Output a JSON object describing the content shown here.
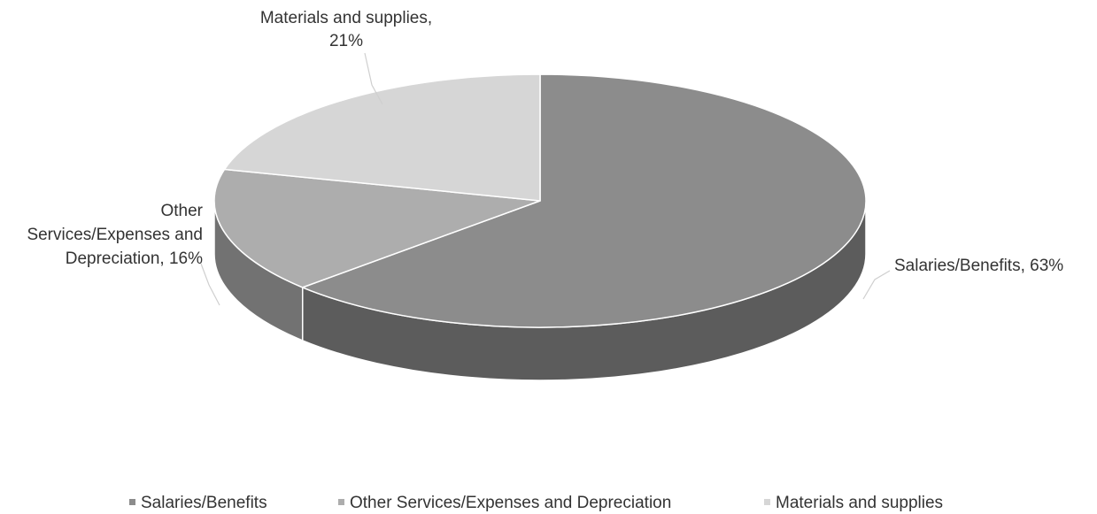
{
  "chart_data": {
    "type": "pie",
    "title": "",
    "three_d": true,
    "start_angle_deg": 0,
    "direction": "clockwise",
    "categories": [
      "Salaries/Benefits",
      "Other Services/Expenses and Depreciation",
      "Materials and supplies"
    ],
    "values": [
      63,
      16,
      21
    ],
    "unit": "%",
    "colors": [
      "#8c8c8c",
      "#adadad",
      "#d6d6d6"
    ],
    "data_labels": [
      {
        "lines": [
          "Salaries/Benefits, 63%"
        ]
      },
      {
        "lines": [
          "Other",
          "Services/Expenses and",
          "Depreciation, 16%"
        ]
      },
      {
        "lines": [
          "Materials and supplies,",
          "21%"
        ]
      }
    ],
    "legend": {
      "position": "bottom",
      "entries": [
        "Salaries/Benefits",
        "Other Services/Expenses and Depreciation",
        "Materials and supplies"
      ]
    }
  }
}
